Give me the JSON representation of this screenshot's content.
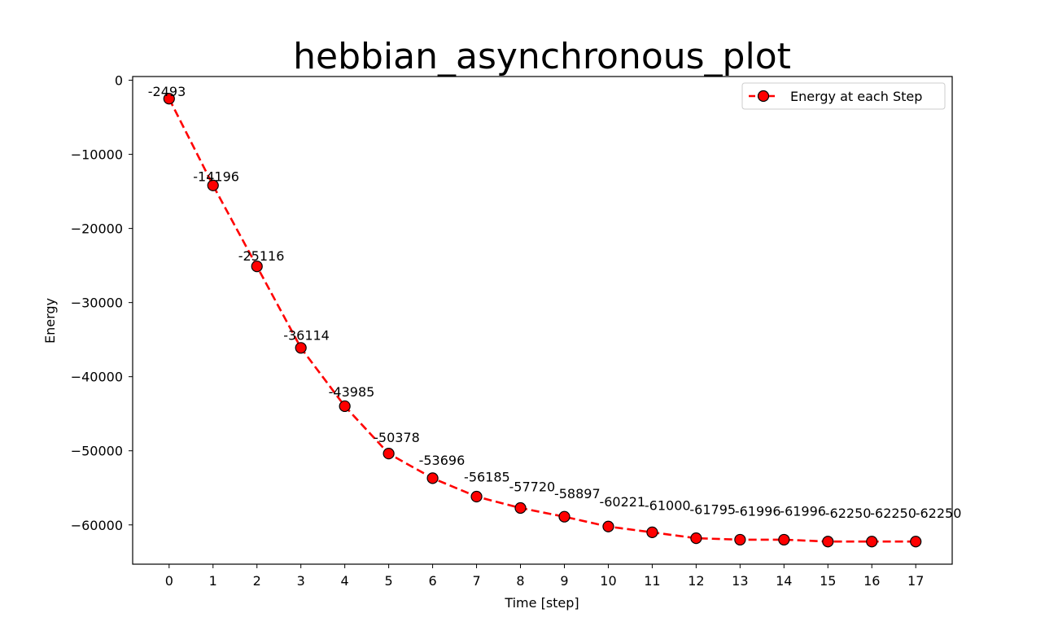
{
  "chart_data": {
    "type": "line",
    "title": "hebbian_asynchronous_plot",
    "xlabel": "Time [step]",
    "ylabel": "Energy",
    "x": [
      0,
      1,
      2,
      3,
      4,
      5,
      6,
      7,
      8,
      9,
      10,
      11,
      12,
      13,
      14,
      15,
      16,
      17
    ],
    "series": [
      {
        "name": "Energy at each Step",
        "values": [
          -2493,
          -14196,
          -25116,
          -36114,
          -43985,
          -50378,
          -53696,
          -56185,
          -57720,
          -58897,
          -60221,
          -61000,
          -61795,
          -61996,
          -61996,
          -62250,
          -62250,
          -62250
        ],
        "color": "#ff0000",
        "marker_color": "#ff0000",
        "marker_edge": "#000000",
        "line_style": "dashed"
      }
    ],
    "data_labels": [
      "-2493",
      "-14196",
      "-25116",
      "-36114",
      "-43985",
      "-50378",
      "-53696",
      "-56185",
      "-57720",
      "-58897",
      "-60221",
      "-61000",
      "-61795",
      "-61996",
      "-61996",
      "-62250",
      "-62250",
      "-62250"
    ],
    "xlim": [
      -0.83,
      17.83
    ],
    "ylim": [
      -65300,
      500
    ],
    "yticks": [
      0,
      -10000,
      -20000,
      -30000,
      -40000,
      -50000,
      -60000
    ],
    "ytick_labels": [
      "0",
      "−10000",
      "−20000",
      "−30000",
      "−40000",
      "−50000",
      "−60000"
    ],
    "xticks": [
      0,
      1,
      2,
      3,
      4,
      5,
      6,
      7,
      8,
      9,
      10,
      11,
      12,
      13,
      14,
      15,
      16,
      17
    ],
    "xtick_labels": [
      "0",
      "1",
      "2",
      "3",
      "4",
      "5",
      "6",
      "7",
      "8",
      "9",
      "10",
      "11",
      "12",
      "13",
      "14",
      "15",
      "16",
      "17"
    ],
    "grid": false,
    "legend_position": "top-right"
  }
}
